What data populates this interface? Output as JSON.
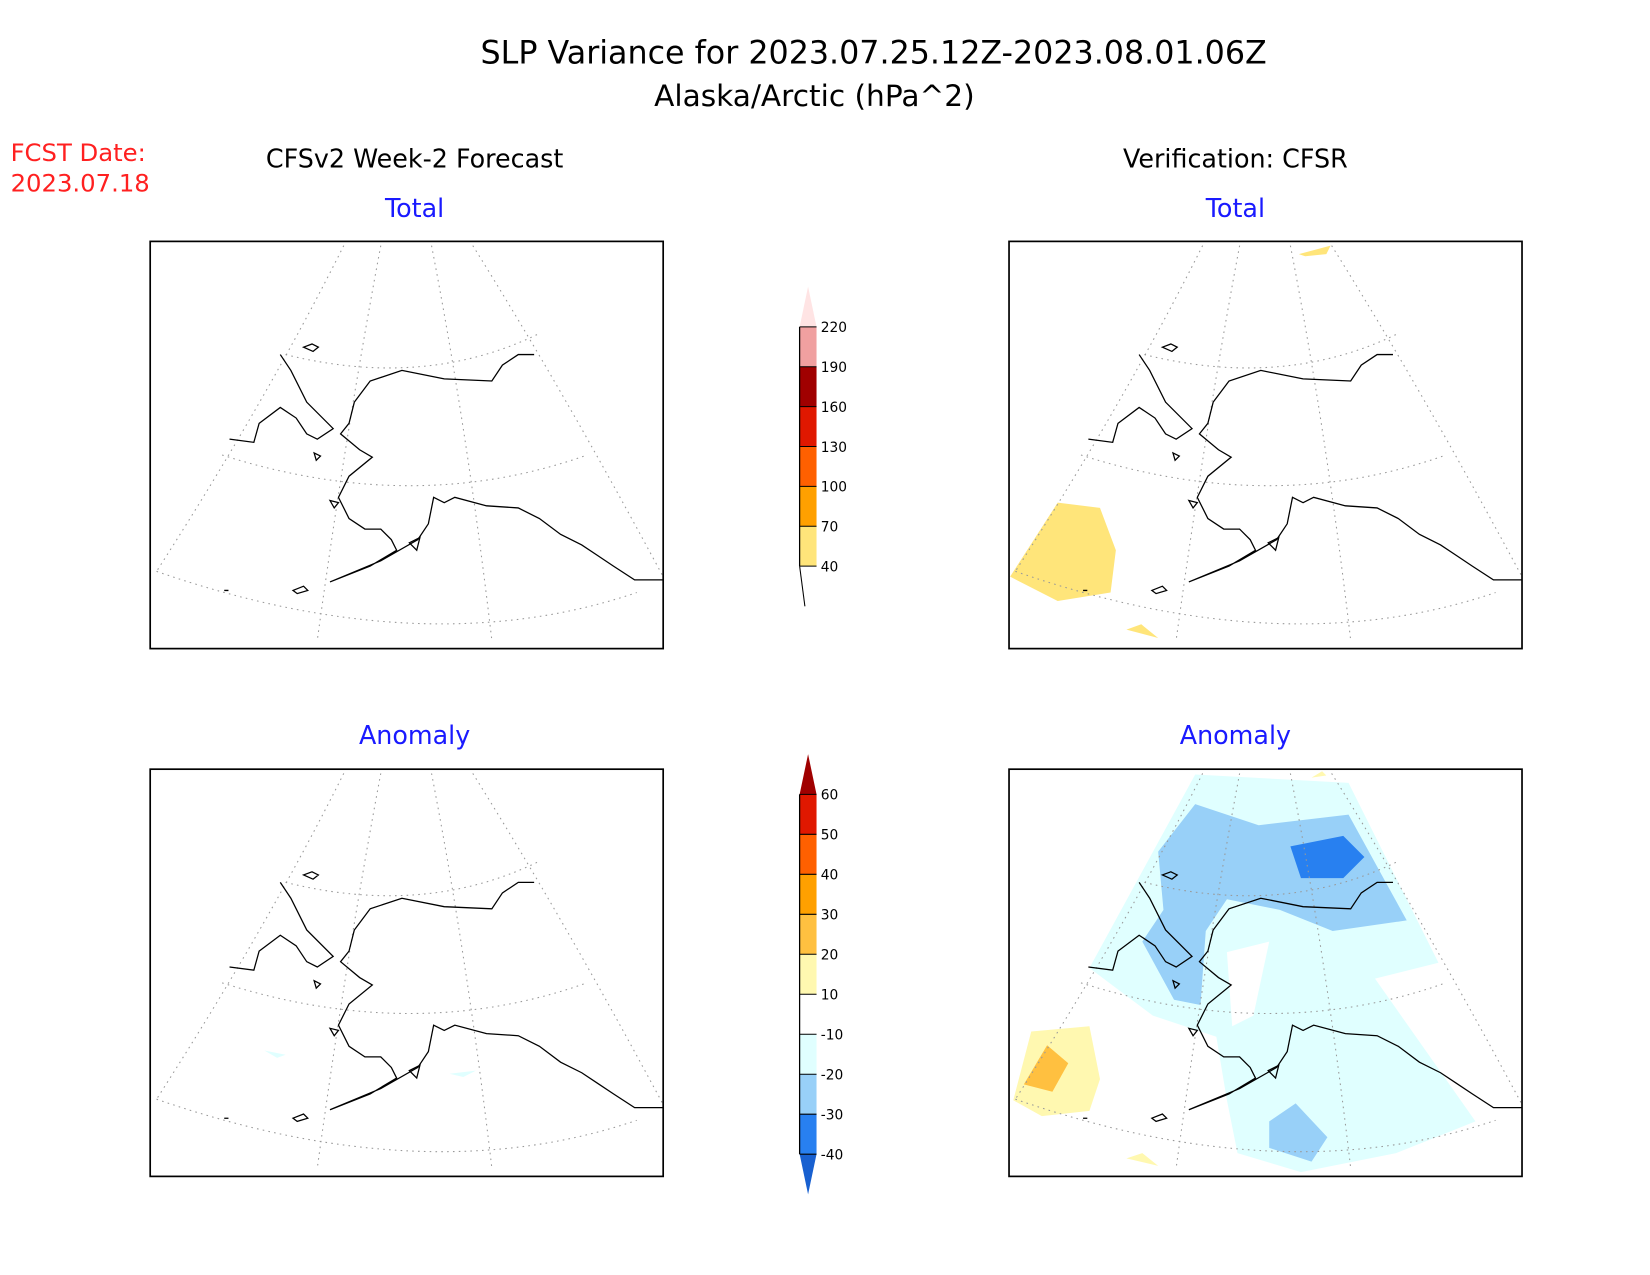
{
  "title": {
    "line1": "SLP Variance for 2023.07.25.12Z-2023.08.01.06Z",
    "line2": "Alaska/Arctic (hPa^2)"
  },
  "fcst": {
    "label": "FCST Date:",
    "date": "2023.07.18",
    "color": "#ff2020"
  },
  "columns": {
    "left": "CFSv2 Week-2 Forecast",
    "right": "Verification: CFSR"
  },
  "panels": {
    "top_left": "Total",
    "top_right": "Total",
    "bottom_left": "Anomaly",
    "bottom_right": "Anomaly"
  },
  "colors": {
    "panel_title": "#1a1aff"
  },
  "colorbar_total": {
    "labels": [
      "40",
      "70",
      "100",
      "130",
      "160",
      "190",
      "220"
    ],
    "bins": [
      "#ffe57a",
      "#ffa000",
      "#ff6000",
      "#e01800",
      "#a00000",
      "#f0a0a0",
      "#ffe4e4"
    ]
  },
  "colorbar_anomaly": {
    "labels": [
      "-40",
      "-30",
      "-20",
      "-10",
      "10",
      "20",
      "30",
      "40",
      "50",
      "60"
    ],
    "bins": [
      "#1860d0",
      "#2880f0",
      "#98d0f8",
      "#e0ffff",
      "#ffffff",
      "#fff8b0",
      "#ffc040",
      "#ffa000",
      "#ff6000",
      "#e01800",
      "#a00000"
    ]
  }
}
